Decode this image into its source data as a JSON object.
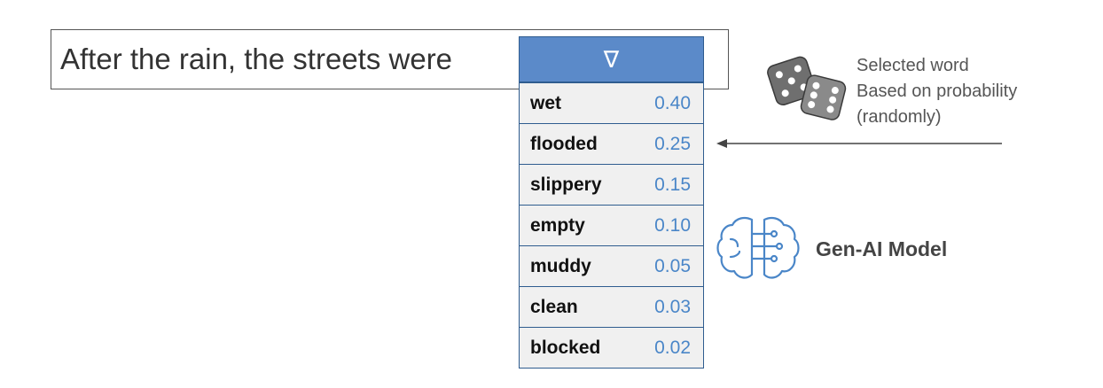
{
  "prompt": {
    "text": "After the rain, the streets were"
  },
  "dropdown": {
    "toggle_symbol": "∇",
    "options": [
      {
        "word": "wet",
        "prob": "0.40"
      },
      {
        "word": "flooded",
        "prob": "0.25"
      },
      {
        "word": "slippery",
        "prob": "0.15"
      },
      {
        "word": "empty",
        "prob": "0.10"
      },
      {
        "word": "muddy",
        "prob": "0.05"
      },
      {
        "word": "clean",
        "prob": "0.03"
      },
      {
        "word": "blocked",
        "prob": "0.02"
      }
    ]
  },
  "selection_note": {
    "lines": [
      "Selected word",
      "Based on probability",
      "(randomly)"
    ]
  },
  "model": {
    "label": "Gen-AI Model"
  },
  "icons": {
    "dice": "dice-icon",
    "brain": "brain-circuit-icon",
    "arrow": "arrow-left-icon"
  },
  "colors": {
    "header_fill": "#5b8ac9",
    "border": "#2f5c8f",
    "prob_text": "#4a86c8",
    "brain_stroke": "#4a86c8"
  }
}
